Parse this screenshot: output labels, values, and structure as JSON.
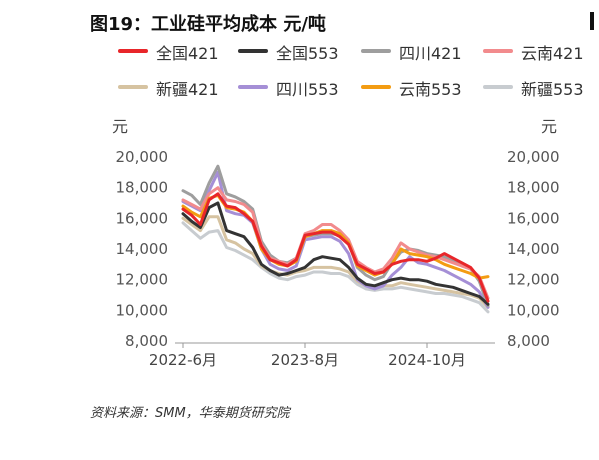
{
  "title": "图19：工业硅平均成本 元/吨",
  "source": "资料来源：SMM，华泰期货研究院",
  "chart_data": {
    "type": "line",
    "yunit_left": "元",
    "yunit_right": "元",
    "ylim": [
      8000,
      20000
    ],
    "yticks": [
      8000,
      10000,
      12000,
      14000,
      16000,
      18000,
      20000
    ],
    "ytick_labels": [
      "8,000",
      "10,000",
      "12,000",
      "14,000",
      "16,000",
      "18,000",
      "20,000"
    ],
    "xticks": [
      {
        "x": 0,
        "label": "2022-6月"
      },
      {
        "x": 14,
        "label": "2023-8月"
      },
      {
        "x": 28,
        "label": "2024-10月"
      }
    ],
    "x": [
      0,
      1,
      2,
      3,
      4,
      5,
      6,
      7,
      8,
      9,
      10,
      11,
      12,
      13,
      14,
      15,
      16,
      17,
      18,
      19,
      20,
      21,
      22,
      23,
      24,
      25,
      26,
      27,
      28,
      29,
      30,
      31,
      32,
      33,
      34,
      35
    ],
    "series": [
      {
        "name": "全国421",
        "color": "#e8262a",
        "values": [
          16600,
          16200,
          15600,
          17200,
          17600,
          16800,
          16700,
          16300,
          15800,
          14200,
          13300,
          13100,
          12900,
          13300,
          14900,
          15000,
          15100,
          15100,
          14800,
          14300,
          13000,
          12700,
          12400,
          12500,
          13000,
          13200,
          13300,
          13300,
          13200,
          13400,
          13700,
          13400,
          13100,
          12800,
          12100,
          10600
        ]
      },
      {
        "name": "全国553",
        "color": "#333333",
        "values": [
          16300,
          15800,
          15400,
          16700,
          17000,
          15200,
          15000,
          14800,
          14100,
          13000,
          12600,
          12300,
          12400,
          12600,
          12800,
          13300,
          13500,
          13400,
          13300,
          12800,
          12100,
          11700,
          11600,
          11800,
          12000,
          12100,
          12000,
          12000,
          11900,
          11700,
          11600,
          11500,
          11300,
          11100,
          10900,
          10400
        ]
      },
      {
        "name": "四川421",
        "color": "#9e9e9e",
        "values": [
          17800,
          17500,
          16900,
          18300,
          19400,
          17600,
          17400,
          17100,
          16600,
          14500,
          13600,
          13200,
          13100,
          13400,
          14800,
          14900,
          15000,
          15000,
          14900,
          14400,
          12800,
          12300,
          12000,
          12200,
          13100,
          13800,
          14000,
          13900,
          13700,
          13600,
          13500,
          13200,
          12900,
          12700,
          11900,
          10300
        ]
      },
      {
        "name": "云南421",
        "color": "#f28b8d",
        "values": [
          17200,
          16900,
          16600,
          17600,
          18000,
          17200,
          17100,
          16900,
          16400,
          14300,
          13400,
          13200,
          13000,
          13400,
          15000,
          15200,
          15600,
          15600,
          15200,
          14600,
          13200,
          12800,
          12500,
          12700,
          13400,
          14400,
          14000,
          13800,
          13600,
          13500,
          13300,
          13100,
          12900,
          12700,
          12200,
          10800
        ]
      },
      {
        "name": "新疆421",
        "color": "#d6c3a1",
        "values": [
          16000,
          15600,
          15200,
          16100,
          16100,
          14600,
          14400,
          14000,
          13700,
          12900,
          12600,
          12400,
          12300,
          12500,
          12600,
          12800,
          12800,
          12800,
          12700,
          12500,
          11900,
          11600,
          11500,
          11600,
          11600,
          11800,
          11700,
          11600,
          11500,
          11400,
          11300,
          11200,
          11100,
          11000,
          10800,
          10200
        ]
      },
      {
        "name": "四川553",
        "color": "#a58fd6",
        "values": [
          17100,
          16800,
          16500,
          17800,
          19000,
          16500,
          16300,
          16200,
          15700,
          14000,
          13000,
          12700,
          12600,
          12900,
          14600,
          14700,
          14800,
          14800,
          14500,
          13700,
          12000,
          11600,
          11400,
          11600,
          12300,
          12800,
          13500,
          13100,
          13000,
          12800,
          12600,
          12300,
          12000,
          11700,
          11200,
          10200
        ]
      },
      {
        "name": "云南553",
        "color": "#f39c12",
        "values": [
          16800,
          16400,
          16100,
          17300,
          17500,
          16700,
          16600,
          16400,
          15800,
          14000,
          13300,
          13000,
          12900,
          13200,
          14800,
          15000,
          15200,
          15200,
          15000,
          14400,
          12900,
          12600,
          12300,
          12500,
          13000,
          14000,
          13700,
          13600,
          13500,
          13300,
          13000,
          12800,
          12600,
          12400,
          12100,
          12200
        ]
      },
      {
        "name": "新疆553",
        "color": "#c8ccd0",
        "values": [
          15700,
          15200,
          14700,
          15100,
          15200,
          14100,
          13900,
          13600,
          13300,
          12800,
          12400,
          12100,
          12000,
          12200,
          12300,
          12500,
          12500,
          12400,
          12400,
          12200,
          11700,
          11400,
          11300,
          11400,
          11400,
          11500,
          11400,
          11300,
          11200,
          11100,
          11100,
          11000,
          10900,
          10700,
          10500,
          9900
        ]
      }
    ]
  }
}
